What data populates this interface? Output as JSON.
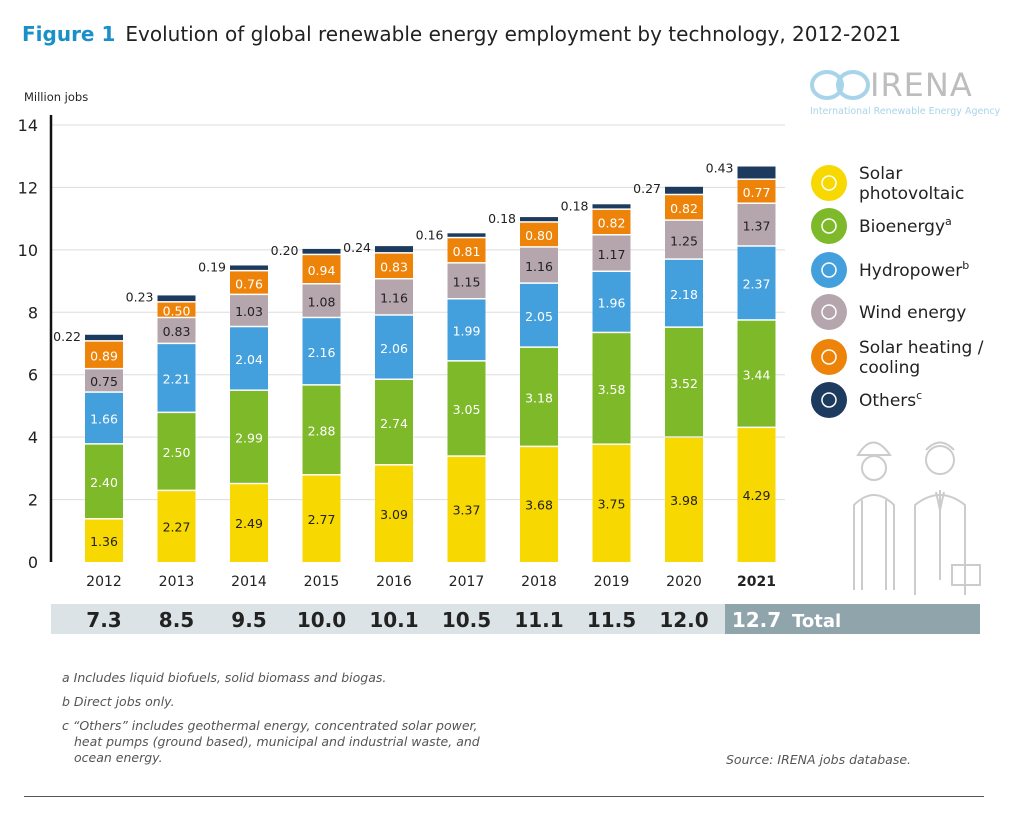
{
  "figure_label": "Figure 1",
  "title": "Evolution of global renewable energy employment by technology, 2012-2021",
  "logo": {
    "name": "IRENA",
    "subtitle": "International Renewable Energy Agency"
  },
  "chart_data": {
    "type": "bar",
    "stacked": true,
    "ylabel": "Million jobs",
    "ylim": [
      0,
      14
    ],
    "yticks": [
      0,
      2,
      4,
      6,
      8,
      10,
      12,
      14
    ],
    "grid": true,
    "legend_position": "right",
    "categories": [
      "2012",
      "2013",
      "2014",
      "2015",
      "2016",
      "2017",
      "2018",
      "2019",
      "2020",
      "2021"
    ],
    "series": [
      {
        "name": "Solar photovoltaic",
        "color": "#f7d800",
        "icon": "sun-icon",
        "values": [
          1.36,
          2.27,
          2.49,
          2.77,
          3.09,
          3.37,
          3.68,
          3.75,
          3.98,
          4.29
        ]
      },
      {
        "name": "Bioenergy",
        "sup": "a",
        "color": "#7db928",
        "icon": "leaf-icon",
        "values": [
          2.4,
          2.5,
          2.99,
          2.88,
          2.74,
          3.05,
          3.18,
          3.58,
          3.52,
          3.44
        ]
      },
      {
        "name": "Hydropower",
        "sup": "b",
        "color": "#44a0dc",
        "icon": "water-drop-icon",
        "values": [
          1.66,
          2.21,
          2.04,
          2.16,
          2.06,
          1.99,
          2.05,
          1.96,
          2.18,
          2.37
        ]
      },
      {
        "name": "Wind energy",
        "color": "#b5a6ad",
        "icon": "wind-turbine-icon",
        "values": [
          0.75,
          0.83,
          1.03,
          1.08,
          1.16,
          1.15,
          1.16,
          1.17,
          1.25,
          1.37
        ]
      },
      {
        "name": "Solar heating / cooling",
        "color": "#ee8309",
        "icon": "sun-icon",
        "values": [
          0.89,
          0.5,
          0.76,
          0.94,
          0.83,
          0.81,
          0.8,
          0.82,
          0.82,
          0.77
        ]
      },
      {
        "name": "Others",
        "sup": "c",
        "color": "#1d3a5f",
        "icon": "plus-plus-icon",
        "values": [
          0.22,
          0.23,
          0.19,
          0.2,
          0.24,
          0.16,
          0.18,
          0.18,
          0.27,
          0.43
        ]
      }
    ],
    "totals": [
      "7.3",
      "8.5",
      "9.5",
      "10.0",
      "10.1",
      "10.5",
      "11.1",
      "11.5",
      "12.0",
      "12.7"
    ],
    "total_label": "Total"
  },
  "footnotes": [
    "a  Includes liquid biofuels, solid biomass and biogas.",
    "b  Direct jobs only.",
    "c  “Others” includes geothermal energy, concentrated solar power,",
    "heat pumps (ground based), municipal and industrial waste, and",
    "ocean energy."
  ],
  "source": "Source: IRENA jobs database."
}
